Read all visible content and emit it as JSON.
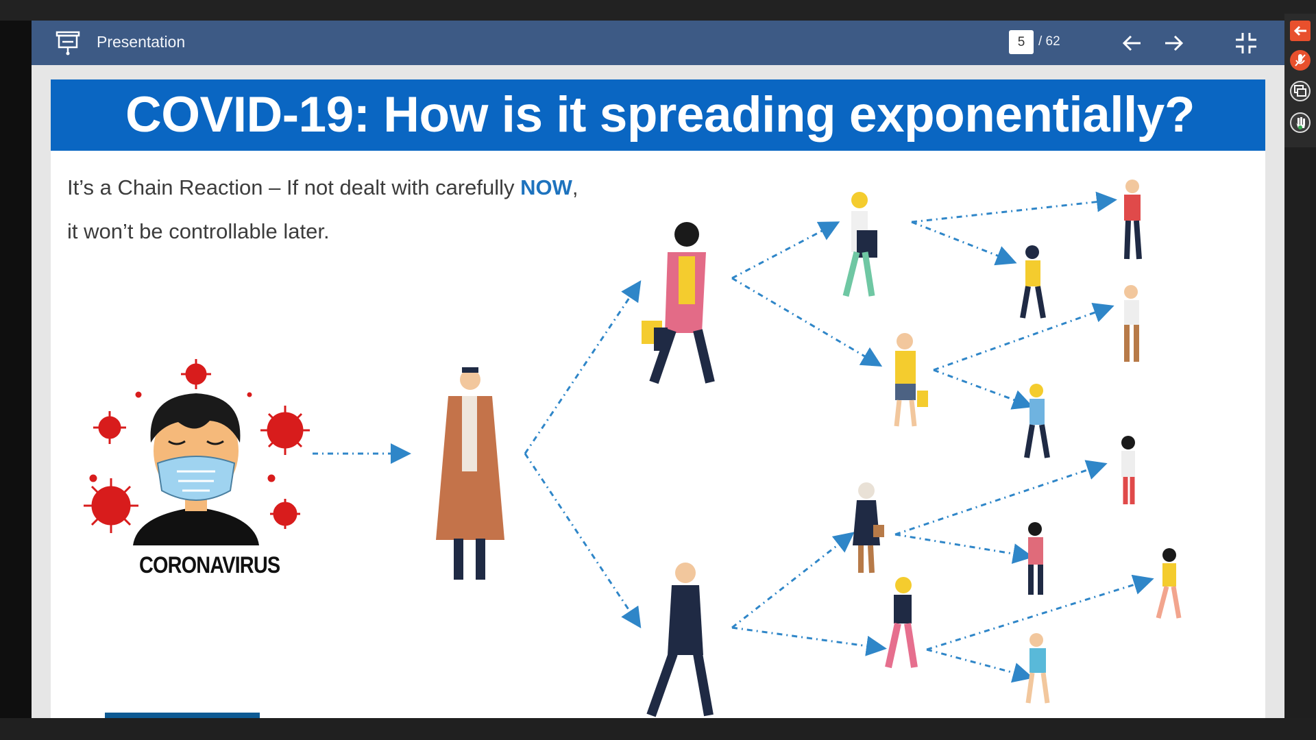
{
  "toolbar": {
    "title": "Presentation",
    "current_page": "5",
    "total_pages": "/ 62",
    "icons": {
      "presentation": "presentation-icon",
      "prev": "arrow-left-icon",
      "next": "arrow-right-icon",
      "exit_fullscreen": "exit-fullscreen-icon"
    }
  },
  "slide": {
    "title": "COVID-19: How is it spreading exponentially?",
    "line1_prefix": "It’s a Chain Reaction – If not dealt with carefully ",
    "line1_highlight": "NOW",
    "line1_suffix": ",",
    "line2": "it won’t be controllable later.",
    "virus_label": "CORONAVIRUS"
  },
  "side_panel": {
    "icons": [
      "collapse-panel-icon",
      "mute-mic-icon",
      "share-screen-icon",
      "raise-hand-icon"
    ]
  },
  "colors": {
    "toolbar": "#3d5a85",
    "banner": "#0a66c2",
    "highlight": "#1e73be",
    "arrow": "#2f86c8",
    "virus": "#d81c1c",
    "mask": "#9fd3f0"
  }
}
